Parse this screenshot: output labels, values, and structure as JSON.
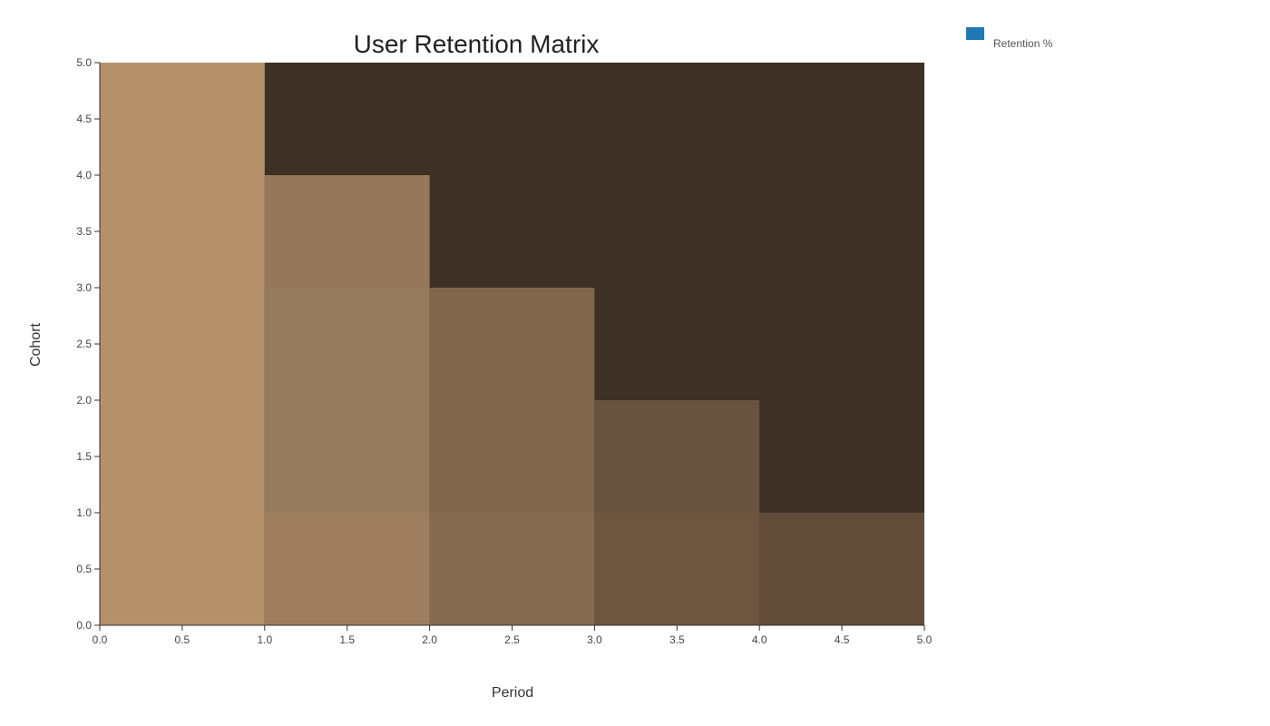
{
  "chart_data": {
    "type": "heatmap",
    "title": "User Retention Matrix",
    "xlabel": "Period",
    "ylabel": "Cohort",
    "xlim": [
      0,
      5
    ],
    "ylim": [
      0,
      5
    ],
    "x_ticks": [
      "0.0",
      "0.5",
      "1.0",
      "1.5",
      "2.0",
      "2.5",
      "3.0",
      "3.5",
      "4.0",
      "4.5",
      "5.0"
    ],
    "y_ticks": [
      "0.0",
      "0.5",
      "1.0",
      "1.5",
      "2.0",
      "2.5",
      "3.0",
      "3.5",
      "4.0",
      "4.5",
      "5.0"
    ],
    "grid": false,
    "legend": {
      "position": "top-right",
      "entries": [
        {
          "label": "Retention %",
          "color": "#1f77b4"
        }
      ]
    },
    "background_color": "#3d3024",
    "cells": [
      {
        "x0": 0,
        "x1": 1,
        "y0": 0,
        "y1": 5,
        "color": "#b4906b"
      },
      {
        "x0": 1,
        "x1": 2,
        "y0": 0,
        "y1": 1,
        "color": "#9e7e5f"
      },
      {
        "x0": 1,
        "x1": 2,
        "y0": 1,
        "y1": 3,
        "color": "#977b5d"
      },
      {
        "x0": 1,
        "x1": 2,
        "y0": 3,
        "y1": 4,
        "color": "#947859"
      },
      {
        "x0": 2,
        "x1": 3,
        "y0": 0,
        "y1": 1,
        "color": "#856a4f"
      },
      {
        "x0": 2,
        "x1": 3,
        "y0": 1,
        "y1": 3,
        "color": "#80664c"
      },
      {
        "x0": 3,
        "x1": 4,
        "y0": 0,
        "y1": 1,
        "color": "#6d553f"
      },
      {
        "x0": 3,
        "x1": 4,
        "y0": 1,
        "y1": 2,
        "color": "#68533f"
      },
      {
        "x0": 4,
        "x1": 5,
        "y0": 0,
        "y1": 1,
        "color": "#614d3a"
      }
    ]
  }
}
